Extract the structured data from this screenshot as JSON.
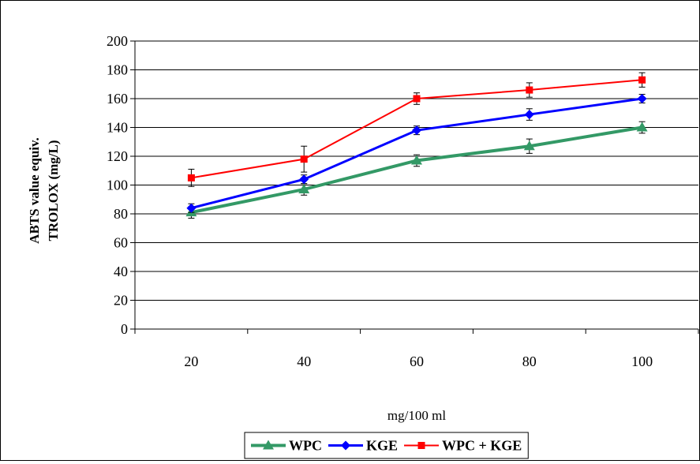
{
  "chart_data": {
    "type": "line",
    "title": "",
    "xlabel": "mg/100 ml",
    "ylabel_lines": [
      "ABTS value equiv.",
      "TROLOX (mg/L)"
    ],
    "categories": [
      "20",
      "40",
      "60",
      "80",
      "100"
    ],
    "ylim": [
      0,
      200
    ],
    "yticks": [
      0,
      20,
      40,
      60,
      80,
      100,
      120,
      140,
      160,
      180,
      200
    ],
    "grid": "horizontal",
    "legend_position": "bottom",
    "series": [
      {
        "name": "WPC",
        "marker": "triangle",
        "color": "#339966",
        "values": [
          81,
          97,
          117,
          127,
          140
        ],
        "errors": [
          4,
          4,
          4,
          5,
          4
        ]
      },
      {
        "name": "KGE",
        "marker": "diamond",
        "color": "#0000FF",
        "values": [
          84,
          104,
          138,
          149,
          160
        ],
        "errors": [
          3,
          3,
          3,
          4,
          3
        ]
      },
      {
        "name": "WPC + KGE",
        "marker": "square",
        "color": "#FF0000",
        "values": [
          105,
          118,
          160,
          166,
          173
        ],
        "errors": [
          6,
          9,
          4,
          5,
          5
        ]
      }
    ]
  }
}
